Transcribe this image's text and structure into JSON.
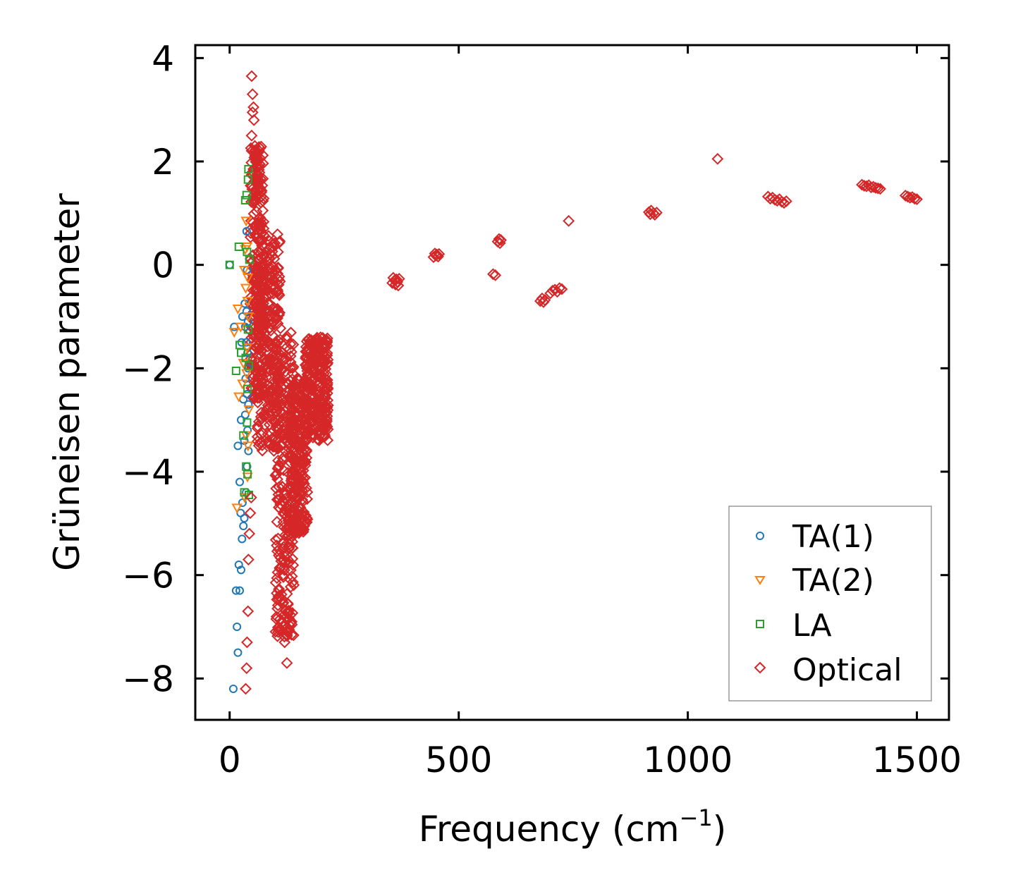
{
  "chart_data": {
    "type": "scatter",
    "title": "",
    "xlabel": "Frequency (cm",
    "xlabel_superscript": "−1",
    "xlabel_suffix": ")",
    "ylabel": "Grüneisen parameter",
    "xlim": [
      -75,
      1570
    ],
    "ylim": [
      -8.8,
      4.25
    ],
    "xticks": [
      0,
      500,
      1000,
      1500
    ],
    "xtick_labels": [
      "0",
      "500",
      "1000",
      "1500"
    ],
    "yticks": [
      -8,
      -6,
      -4,
      -2,
      0,
      2,
      4
    ],
    "ytick_labels": [
      "−8",
      "−6",
      "−4",
      "−2",
      "0",
      "2",
      "4"
    ],
    "legend_position": "lower-right",
    "series": [
      {
        "name": "TA(1)",
        "marker": "circle",
        "color": "#1f77b4",
        "points": [
          [
            0,
            0
          ],
          [
            8,
            -8.2
          ],
          [
            10,
            -1.2
          ],
          [
            14,
            -6.3
          ],
          [
            16,
            -7
          ],
          [
            18,
            -3.5
          ],
          [
            18,
            -7.5
          ],
          [
            20,
            -5.8
          ],
          [
            22,
            -4.2
          ],
          [
            22,
            -6.3
          ],
          [
            24,
            -4.8
          ],
          [
            25,
            -3
          ],
          [
            25,
            -5.9
          ],
          [
            26,
            -1.5
          ],
          [
            27,
            -5.3
          ],
          [
            28,
            -4.6
          ],
          [
            28,
            -1
          ],
          [
            30,
            -5.05
          ],
          [
            30,
            -2.6
          ],
          [
            32,
            -4.9
          ],
          [
            32,
            -3.4
          ],
          [
            33,
            -0.75
          ],
          [
            34,
            -1.2
          ],
          [
            34,
            -2.9
          ],
          [
            35,
            -1.8
          ],
          [
            35,
            -2.2
          ],
          [
            36,
            -4.4
          ],
          [
            36,
            -1.5
          ],
          [
            37,
            0.65
          ],
          [
            37,
            -0.9
          ],
          [
            38,
            -2.5
          ],
          [
            38,
            -3.9
          ],
          [
            38,
            -0.1
          ],
          [
            39,
            -1.7
          ],
          [
            39,
            -3.2
          ],
          [
            40,
            -2
          ],
          [
            40,
            -1.1
          ],
          [
            41,
            -2.7
          ],
          [
            41,
            -3.6
          ]
        ]
      },
      {
        "name": "TA(2)",
        "marker": "triangle-down",
        "color": "#ff7f0e",
        "points": [
          [
            10,
            -1.3
          ],
          [
            16,
            -4.7
          ],
          [
            18,
            -0.85
          ],
          [
            20,
            -2.55
          ],
          [
            24,
            -1.2
          ],
          [
            28,
            -2.3
          ],
          [
            30,
            -1.9
          ],
          [
            32,
            -0.1
          ],
          [
            33,
            -4.5
          ],
          [
            34,
            0.3
          ],
          [
            35,
            -0.45
          ],
          [
            36,
            0.85
          ],
          [
            36,
            -3.3
          ],
          [
            37,
            -2.1
          ],
          [
            38,
            -1.6
          ],
          [
            38,
            0.35
          ],
          [
            39,
            -0.7
          ],
          [
            39,
            -4.1
          ],
          [
            40,
            -3.5
          ],
          [
            40,
            -0.25
          ],
          [
            41,
            -1
          ],
          [
            42,
            -2.8
          ]
        ]
      },
      {
        "name": "LA",
        "marker": "square",
        "color": "#2ca02c",
        "points": [
          [
            0,
            0
          ],
          [
            14,
            -2.05
          ],
          [
            20,
            0.35
          ],
          [
            22,
            -1.55
          ],
          [
            25,
            -1.7
          ],
          [
            30,
            -3.3
          ],
          [
            32,
            -4.4
          ],
          [
            34,
            1.25
          ],
          [
            35,
            -1.8
          ],
          [
            36,
            -3.9
          ],
          [
            37,
            1.35
          ],
          [
            38,
            -3.05
          ],
          [
            38,
            0.25
          ],
          [
            39,
            -2.4
          ],
          [
            39,
            -4.05
          ],
          [
            40,
            1.65
          ],
          [
            40,
            -1.25
          ],
          [
            41,
            1.85
          ],
          [
            42,
            -4.45
          ],
          [
            42,
            -1.95
          ],
          [
            43,
            0.1
          ]
        ]
      },
      {
        "name": "Optical",
        "marker": "diamond",
        "color": "#d62728",
        "points": [
          [
            35,
            -8.2
          ],
          [
            37,
            -7.8
          ],
          [
            38,
            -7.3
          ],
          [
            40,
            -6.7
          ],
          [
            41,
            -5.7
          ],
          [
            43,
            -5.2
          ],
          [
            45,
            -4.8
          ],
          [
            47,
            -4.5
          ],
          [
            48,
            3.65
          ],
          [
            50,
            3.3
          ],
          [
            50,
            2.95
          ],
          [
            52,
            3.05
          ],
          [
            53,
            2.8
          ],
          [
            48,
            2.5
          ],
          [
            55,
            2.3
          ],
          [
            58,
            2.1
          ],
          [
            60,
            1.9
          ],
          [
            120,
            -7.3
          ],
          [
            125,
            -7.7
          ],
          [
            128,
            -7.05
          ],
          [
            740,
            0.85
          ],
          [
            1065,
            2.05
          ],
          [
            575,
            -0.18
          ],
          [
            580,
            -0.2
          ],
          [
            585,
            0.45
          ],
          [
            588,
            0.5
          ],
          [
            590,
            0.42
          ],
          [
            592,
            0.48
          ],
          [
            445,
            0.15
          ],
          [
            448,
            0.22
          ],
          [
            450,
            0.18
          ],
          [
            452,
            0.2
          ],
          [
            455,
            0.16
          ],
          [
            457,
            0.21
          ],
          [
            355,
            -0.35
          ],
          [
            357,
            -0.25
          ],
          [
            360,
            -0.3
          ],
          [
            362,
            -0.38
          ],
          [
            364,
            -0.28
          ],
          [
            366,
            -0.33
          ],
          [
            368,
            -0.4
          ],
          [
            370,
            -0.27
          ],
          [
            678,
            -0.7
          ],
          [
            682,
            -0.65
          ],
          [
            685,
            -0.72
          ],
          [
            688,
            -0.68
          ],
          [
            700,
            -0.55
          ],
          [
            705,
            -0.5
          ],
          [
            710,
            -0.48
          ],
          [
            715,
            -0.52
          ],
          [
            720,
            -0.45
          ],
          [
            725,
            -0.47
          ],
          [
            915,
            1.02
          ],
          [
            918,
            0.98
          ],
          [
            920,
            1.05
          ],
          [
            925,
            1.0
          ],
          [
            928,
            0.97
          ],
          [
            932,
            1.01
          ],
          [
            1175,
            1.32
          ],
          [
            1180,
            1.28
          ],
          [
            1185,
            1.3
          ],
          [
            1190,
            1.26
          ],
          [
            1195,
            1.24
          ],
          [
            1200,
            1.27
          ],
          [
            1205,
            1.22
          ],
          [
            1210,
            1.2
          ],
          [
            1215,
            1.23
          ],
          [
            1380,
            1.55
          ],
          [
            1385,
            1.53
          ],
          [
            1390,
            1.52
          ],
          [
            1395,
            1.54
          ],
          [
            1400,
            1.5
          ],
          [
            1405,
            1.51
          ],
          [
            1410,
            1.49
          ],
          [
            1415,
            1.48
          ],
          [
            1420,
            1.47
          ],
          [
            1475,
            1.34
          ],
          [
            1480,
            1.32
          ],
          [
            1485,
            1.3
          ],
          [
            1490,
            1.31
          ],
          [
            1495,
            1.28
          ],
          [
            1500,
            1.27
          ]
        ]
      }
    ],
    "optical_clouds": [
      {
        "note": "dense band",
        "x_range": [
          45,
          75
        ],
        "y_top": 2.3,
        "y_bottom": -2.6
      },
      {
        "note": "dense band",
        "x_range": [
          60,
          110
        ],
        "y_top": 0.6,
        "y_bottom": -3.6
      },
      {
        "note": "dense band",
        "x_range": [
          100,
          140
        ],
        "y_top": -1.2,
        "y_bottom": -7.2
      },
      {
        "note": "dense band",
        "x_range": [
          130,
          170
        ],
        "y_top": -2.2,
        "y_bottom": -5.2
      },
      {
        "note": "dense band",
        "x_range": [
          165,
          215
        ],
        "y_top": -1.4,
        "y_bottom": -3.4
      }
    ]
  }
}
